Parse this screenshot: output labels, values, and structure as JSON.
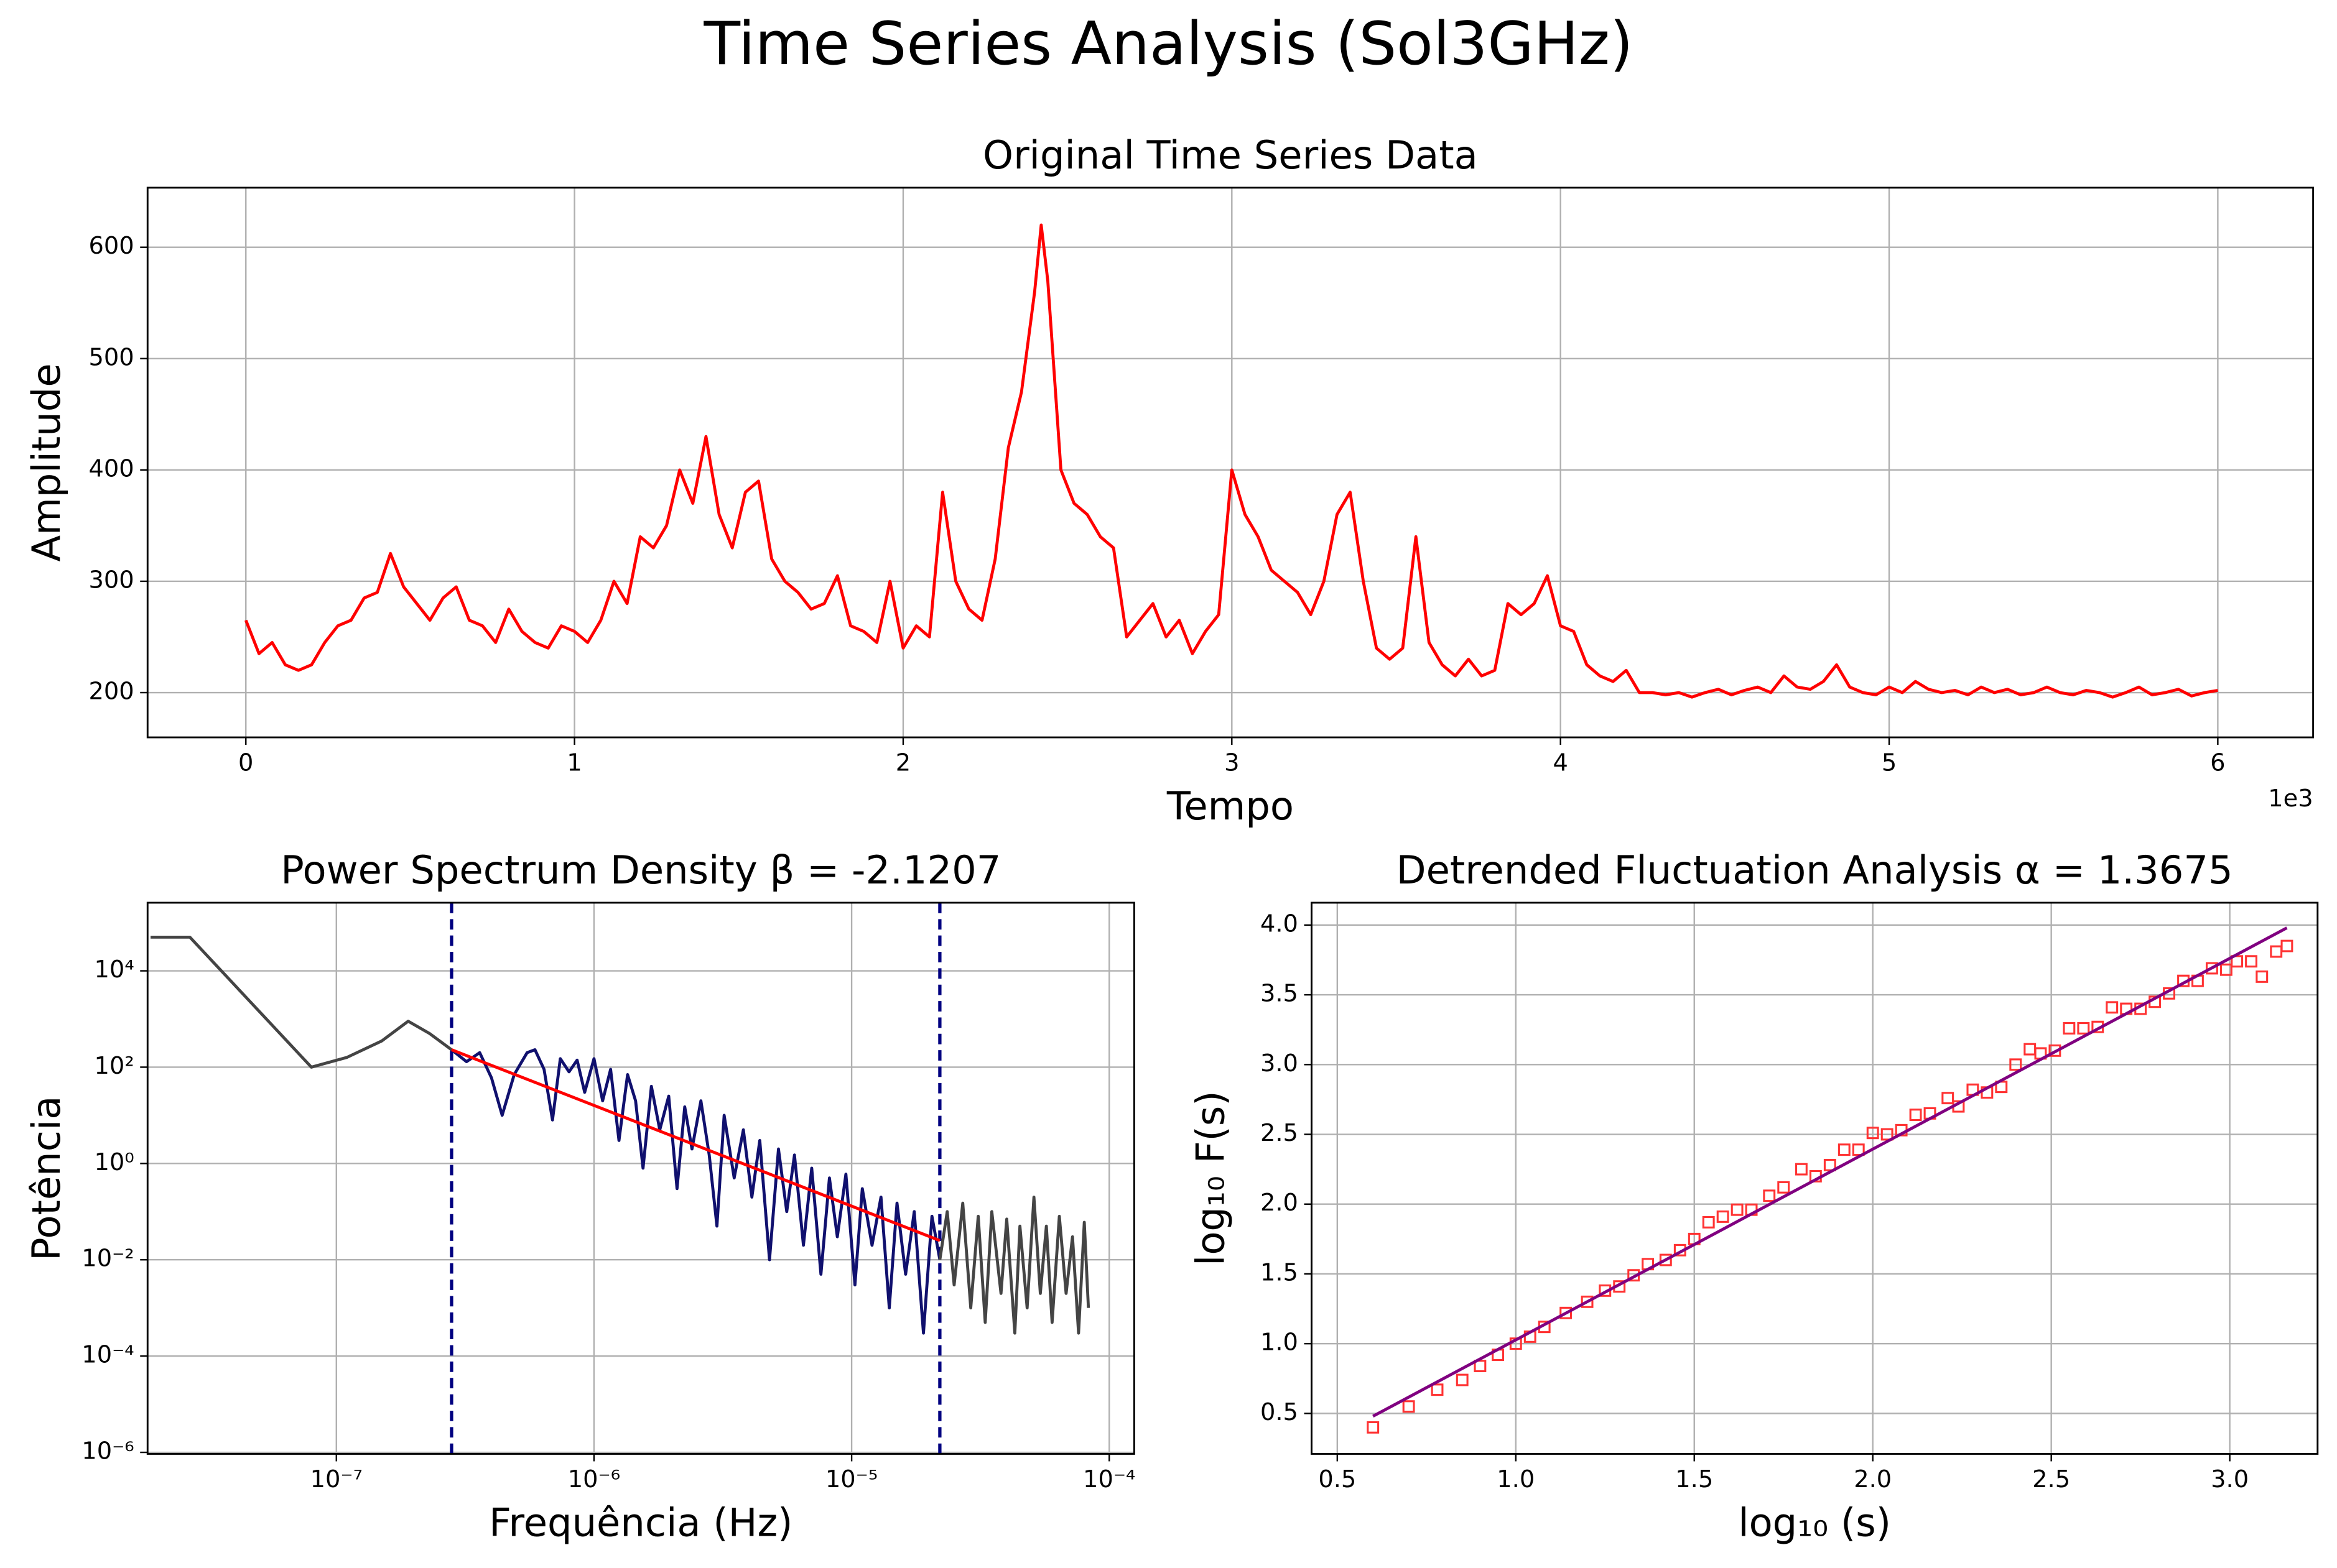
{
  "title": "Time Series Analysis (Sol3GHz)",
  "chart_data": [
    {
      "type": "line",
      "title": "Original Time Series Data",
      "x_label": "Tempo",
      "y_label": "Amplitude",
      "x_offset_label": "1e3",
      "grid": true,
      "xlim": [
        -299,
        6290
      ],
      "ylim": [
        159.8,
        653.5
      ],
      "xticks": [
        {
          "value": 0,
          "label": "0"
        },
        {
          "value": 1000,
          "label": "1"
        },
        {
          "value": 2000,
          "label": "2"
        },
        {
          "value": 3000,
          "label": "3"
        },
        {
          "value": 4000,
          "label": "4"
        },
        {
          "value": 5000,
          "label": "5"
        },
        {
          "value": 6000,
          "label": "6"
        }
      ],
      "yticks": [
        200,
        300,
        400,
        500,
        600
      ],
      "x": [
        0,
        40,
        80,
        120,
        160,
        200,
        240,
        280,
        320,
        360,
        400,
        440,
        480,
        520,
        560,
        600,
        640,
        680,
        720,
        760,
        800,
        840,
        880,
        920,
        960,
        1000,
        1040,
        1080,
        1120,
        1160,
        1200,
        1240,
        1280,
        1320,
        1360,
        1400,
        1440,
        1480,
        1520,
        1560,
        1600,
        1640,
        1680,
        1720,
        1760,
        1800,
        1840,
        1880,
        1920,
        1960,
        2000,
        2040,
        2080,
        2120,
        2160,
        2200,
        2240,
        2280,
        2320,
        2360,
        2400,
        2420,
        2440,
        2480,
        2520,
        2560,
        2600,
        2640,
        2680,
        2720,
        2760,
        2800,
        2840,
        2880,
        2920,
        2960,
        3000,
        3040,
        3080,
        3120,
        3160,
        3200,
        3240,
        3280,
        3320,
        3360,
        3400,
        3440,
        3480,
        3520,
        3560,
        3600,
        3640,
        3680,
        3720,
        3760,
        3800,
        3840,
        3880,
        3920,
        3960,
        4000,
        4040,
        4080,
        4120,
        4160,
        4200,
        4240,
        4280,
        4320,
        4360,
        4400,
        4440,
        4480,
        4520,
        4560,
        4600,
        4640,
        4680,
        4720,
        4760,
        4800,
        4840,
        4880,
        4920,
        4960,
        5000,
        5040,
        5080,
        5120,
        5160,
        5200,
        5240,
        5280,
        5320,
        5360,
        5400,
        5440,
        5480,
        5520,
        5560,
        5600,
        5640,
        5680,
        5720,
        5760,
        5800,
        5840,
        5880,
        5920,
        5960,
        6000
      ],
      "series": [
        {
          "color": "#ff0000",
          "style": "line",
          "values": [
            265,
            235,
            245,
            225,
            220,
            225,
            245,
            260,
            265,
            285,
            290,
            325,
            295,
            280,
            265,
            285,
            295,
            265,
            260,
            245,
            275,
            255,
            245,
            240,
            260,
            255,
            245,
            265,
            300,
            280,
            340,
            330,
            350,
            400,
            370,
            430,
            360,
            330,
            380,
            390,
            320,
            300,
            290,
            275,
            280,
            305,
            260,
            255,
            245,
            300,
            240,
            260,
            250,
            380,
            300,
            275,
            265,
            320,
            420,
            470,
            560,
            620,
            570,
            400,
            370,
            360,
            340,
            330,
            250,
            265,
            280,
            250,
            265,
            235,
            255,
            270,
            400,
            360,
            340,
            310,
            300,
            290,
            270,
            300,
            360,
            380,
            300,
            240,
            230,
            240,
            340,
            245,
            225,
            215,
            230,
            215,
            220,
            280,
            270,
            280,
            305,
            260,
            255,
            225,
            215,
            210,
            220,
            200,
            200,
            198,
            200,
            196,
            200,
            203,
            198,
            202,
            205,
            200,
            215,
            205,
            203,
            210,
            225,
            205,
            200,
            198,
            205,
            200,
            210,
            203,
            200,
            202,
            198,
            205,
            200,
            203,
            198,
            200,
            205,
            200,
            198,
            202,
            200,
            196,
            200,
            205,
            198,
            200,
            203,
            197,
            200,
            202
          ]
        }
      ]
    },
    {
      "type": "line",
      "title": "Power Spectrum Density β = -2.1207",
      "x_label": "Frequência (Hz)",
      "y_label": "Potência",
      "grid": true,
      "xscale": "log",
      "yscale": "log",
      "xlim": [
        1.85e-08,
        0.000125
      ],
      "ylim": [
        9.3e-07,
        260000.0
      ],
      "xticks": [
        {
          "value": 1e-07,
          "label": "10⁻⁷"
        },
        {
          "value": 1e-06,
          "label": "10⁻⁶"
        },
        {
          "value": 1e-05,
          "label": "10⁻⁵"
        },
        {
          "value": 0.0001,
          "label": "10⁻⁴"
        }
      ],
      "yticks": [
        {
          "value": 1e-06,
          "label": "10⁻⁶"
        },
        {
          "value": 0.0001,
          "label": "10⁻⁴"
        },
        {
          "value": 0.01,
          "label": "10⁻²"
        },
        {
          "value": 1,
          "label": "10⁰"
        },
        {
          "value": 100,
          "label": "10²"
        },
        {
          "value": 10000,
          "label": "10⁴"
        }
      ],
      "vlines": [
        {
          "x": 2.8e-07,
          "color": "#000080"
        },
        {
          "x": 2.2e-05,
          "color": "#000080"
        }
      ],
      "series": [
        {
          "color": "#444444",
          "style": "line",
          "x": [
            1.9e-08,
            2.7e-08,
            8e-08,
            1.1e-07,
            1.5e-07,
            1.9e-07,
            2.3e-07,
            2.8e-07
          ],
          "values": [
            50000,
            50000,
            100,
            160,
            350,
            900,
            500,
            230
          ]
        },
        {
          "color": "#10106e",
          "style": "line",
          "x": [
            2.8e-07,
            3.2e-07,
            3.6e-07,
            4e-07,
            4.4e-07,
            4.9e-07,
            5.5e-07,
            5.9e-07,
            6.4e-07,
            6.9e-07,
            7.4e-07,
            8e-07,
            8.6e-07,
            9.2e-07,
            1e-06,
            1.08e-06,
            1.16e-06,
            1.25e-06,
            1.35e-06,
            1.45e-06,
            1.55e-06,
            1.67e-06,
            1.8e-06,
            1.95e-06,
            2.1e-06,
            2.25e-06,
            2.4e-06,
            2.6e-06,
            2.8e-06,
            3e-06,
            3.2e-06,
            3.5e-06,
            3.8e-06,
            4.1e-06,
            4.4e-06,
            4.8e-06,
            5.2e-06,
            5.6e-06,
            6e-06,
            6.5e-06,
            7e-06,
            7.6e-06,
            8.2e-06,
            8.8e-06,
            9.5e-06,
            1.03e-05,
            1.1e-05,
            1.2e-05,
            1.3e-05,
            1.4e-05,
            1.5e-05,
            1.62e-05,
            1.75e-05,
            1.9e-05,
            2.05e-05,
            2.2e-05
          ],
          "values": [
            230,
            130,
            200,
            60,
            10,
            70,
            200,
            230,
            90,
            8,
            150,
            80,
            140,
            30,
            150,
            20,
            90,
            3,
            70,
            20,
            0.8,
            40,
            5,
            25,
            0.3,
            15,
            2,
            20,
            1.5,
            0.05,
            10,
            0.5,
            5,
            0.2,
            3,
            0.01,
            2,
            0.1,
            1.5,
            0.02,
            0.8,
            0.005,
            0.5,
            0.03,
            0.6,
            0.003,
            0.3,
            0.02,
            0.2,
            0.001,
            0.15,
            0.005,
            0.1,
            0.0003,
            0.08,
            0.01
          ]
        },
        {
          "color": "#444444",
          "style": "line",
          "x": [
            2.2e-05,
            2.35e-05,
            2.5e-05,
            2.7e-05,
            2.9e-05,
            3.1e-05,
            3.3e-05,
            3.5e-05,
            3.8e-05,
            4e-05,
            4.3e-05,
            4.5e-05,
            4.8e-05,
            5.1e-05,
            5.4e-05,
            5.7e-05,
            6e-05,
            6.4e-05,
            6.8e-05,
            7.2e-05,
            7.6e-05,
            8e-05,
            8.3e-05
          ],
          "values": [
            0.01,
            0.1,
            0.003,
            0.15,
            0.001,
            0.08,
            0.0005,
            0.1,
            0.002,
            0.07,
            0.0003,
            0.05,
            0.001,
            0.2,
            0.002,
            0.05,
            0.0005,
            0.08,
            0.002,
            0.03,
            0.0003,
            0.06,
            0.001
          ]
        },
        {
          "color": "#ff0000",
          "style": "line",
          "x": [
            2.8e-07,
            2.2e-05
          ],
          "values": [
            230,
            0.025
          ]
        }
      ]
    },
    {
      "type": "scatter",
      "title": "Detrended Fluctuation Analysis α = 1.3675",
      "x_label": "log₁₀ (s)",
      "y_label": "log₁₀ F(s)",
      "grid": true,
      "xlim": [
        0.428,
        3.246
      ],
      "ylim": [
        0.21,
        4.16
      ],
      "xticks": [
        0.5,
        {
          "value": 1,
          "label": "1.0"
        },
        1.5,
        {
          "value": 2,
          "label": "2.0"
        },
        2.5,
        {
          "value": 3,
          "label": "3.0"
        }
      ],
      "yticks": [
        0.5,
        {
          "value": 1,
          "label": "1.0"
        },
        1.5,
        {
          "value": 2,
          "label": "2.0"
        },
        2.5,
        {
          "value": 3,
          "label": "3.0"
        },
        3.5,
        {
          "value": 4,
          "label": "4.0"
        }
      ],
      "series": [
        {
          "color": "#ff3333",
          "style": "markers",
          "x": [
            0.6,
            0.7,
            0.78,
            0.85,
            0.9,
            0.95,
            1.0,
            1.04,
            1.08,
            1.14,
            1.2,
            1.25,
            1.29,
            1.33,
            1.37,
            1.42,
            1.46,
            1.5,
            1.54,
            1.58,
            1.62,
            1.66,
            1.71,
            1.75,
            1.8,
            1.84,
            1.88,
            1.92,
            1.96,
            2.0,
            2.04,
            2.08,
            2.12,
            2.16,
            2.21,
            2.24,
            2.28,
            2.32,
            2.36,
            2.4,
            2.44,
            2.47,
            2.51,
            2.55,
            2.59,
            2.63,
            2.67,
            2.71,
            2.75,
            2.79,
            2.83,
            2.87,
            2.91,
            2.95,
            2.99,
            3.02,
            3.06,
            3.09,
            3.13,
            3.16
          ],
          "values": [
            0.4,
            0.55,
            0.67,
            0.74,
            0.84,
            0.92,
            1.0,
            1.05,
            1.12,
            1.22,
            1.3,
            1.38,
            1.41,
            1.49,
            1.57,
            1.6,
            1.67,
            1.75,
            1.87,
            1.91,
            1.96,
            1.96,
            2.06,
            2.12,
            2.25,
            2.2,
            2.28,
            2.39,
            2.39,
            2.51,
            2.5,
            2.53,
            2.64,
            2.65,
            2.76,
            2.7,
            2.82,
            2.8,
            2.84,
            3.0,
            3.11,
            3.08,
            3.1,
            3.26,
            3.26,
            3.27,
            3.41,
            3.4,
            3.4,
            3.45,
            3.51,
            3.6,
            3.6,
            3.69,
            3.68,
            3.74,
            3.74,
            3.63,
            3.81,
            3.85
          ]
        },
        {
          "color": "#800080",
          "style": "line",
          "x": [
            0.6,
            3.16
          ],
          "values": [
            0.48,
            3.98
          ]
        }
      ]
    }
  ]
}
